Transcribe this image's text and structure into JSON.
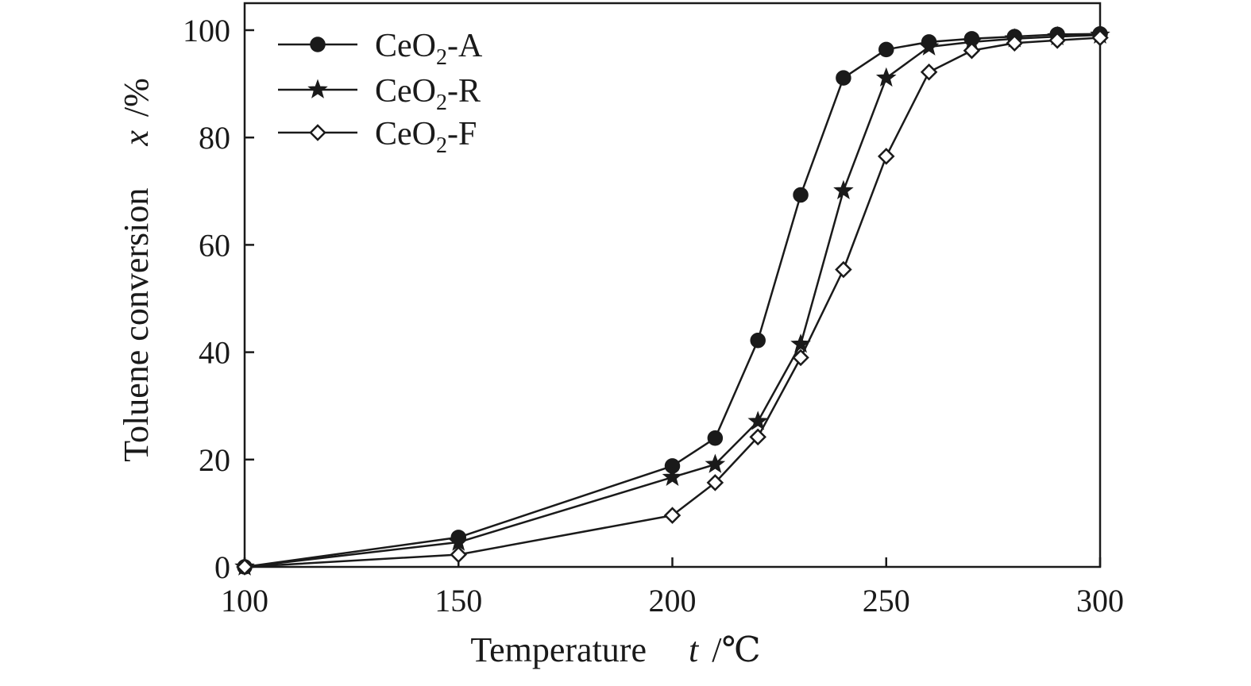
{
  "chart_data": {
    "type": "line",
    "title": "",
    "xlabel": {
      "text": "Temperature",
      "symbol": "t",
      "unit": "/℃"
    },
    "ylabel": {
      "text": "Toluene conversion",
      "symbol": "x",
      "unit": "/%"
    },
    "xlim": [
      100,
      300
    ],
    "ylim": [
      0,
      100
    ],
    "x_ticks": [
      100,
      150,
      200,
      250,
      300
    ],
    "y_ticks": [
      0,
      20,
      40,
      60,
      80,
      100
    ],
    "grid": false,
    "legend": "top-left",
    "series": [
      {
        "name": "CeO2-A",
        "label": {
          "base": "CeO",
          "sub": "2",
          "suffix": "-A"
        },
        "marker": "filled-circle",
        "color": "#1a1a1a",
        "x": [
          100,
          150,
          200,
          210,
          220,
          230,
          240,
          250,
          260,
          270,
          280,
          290,
          300
        ],
        "y": [
          0,
          5.5,
          18.8,
          24,
          42.2,
          69.3,
          91.1,
          96.4,
          97.8,
          98.4,
          98.8,
          99.2,
          99.3
        ]
      },
      {
        "name": "CeO2-R",
        "label": {
          "base": "CeO",
          "sub": "2",
          "suffix": "-R"
        },
        "marker": "star",
        "color": "#1a1a1a",
        "x": [
          100,
          150,
          200,
          210,
          220,
          230,
          240,
          250,
          260,
          270,
          280,
          290,
          300
        ],
        "y": [
          0,
          4.6,
          16.7,
          19.1,
          27.1,
          41.5,
          70.1,
          91.1,
          96.9,
          97.8,
          98.4,
          98.8,
          99.1
        ]
      },
      {
        "name": "CeO2-F",
        "label": {
          "base": "CeO",
          "sub": "2",
          "suffix": "-F"
        },
        "marker": "open-diamond",
        "color": "#1a1a1a",
        "x": [
          100,
          150,
          200,
          210,
          220,
          230,
          240,
          250,
          260,
          270,
          280,
          290,
          300
        ],
        "y": [
          0,
          2.3,
          9.6,
          15.7,
          24.2,
          39,
          55.4,
          76.5,
          92.2,
          96.2,
          97.6,
          98.1,
          98.6
        ]
      }
    ]
  }
}
